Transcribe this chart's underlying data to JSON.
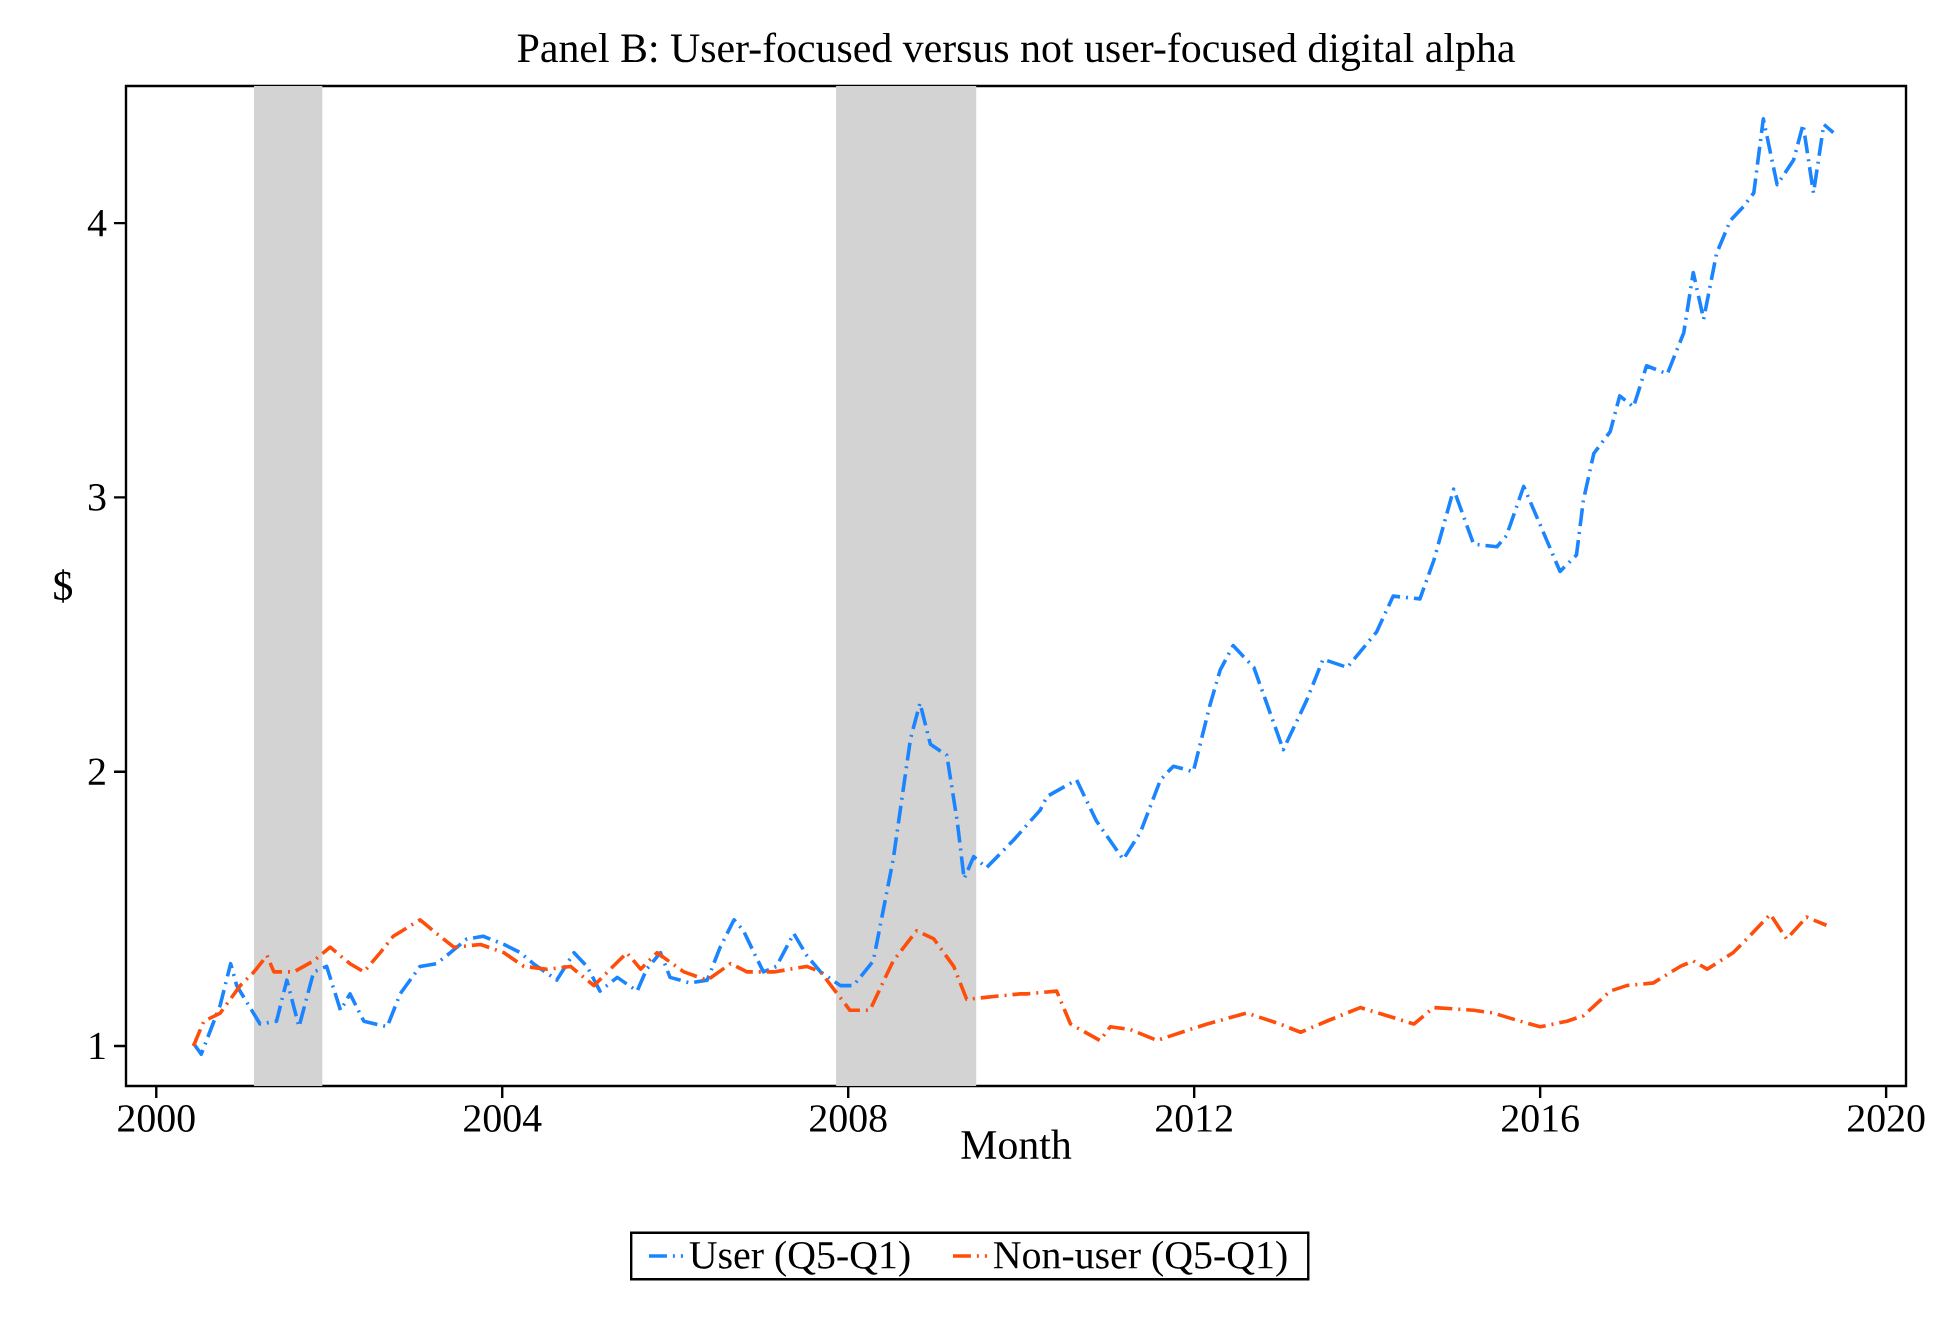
{
  "chart_data": {
    "type": "line",
    "title": "Panel B: User-focused versus not user-focused digital alpha",
    "xlabel": "Month",
    "ylabel": "$",
    "xlim": [
      1999.65,
      2020.23
    ],
    "xticks": [
      2000,
      2004,
      2008,
      2012,
      2016,
      2020
    ],
    "ylim": [
      0.854,
      4.5
    ],
    "yticks": [
      1,
      2,
      3,
      4
    ],
    "grid": false,
    "legend": "bottom",
    "line_style": "dashdot",
    "marker": "none",
    "bands": [
      {
        "axis": "x",
        "from": 2001.13,
        "to": 2001.92,
        "color": "#d3d3d3"
      },
      {
        "axis": "x",
        "from": 2007.86,
        "to": 2009.48,
        "color": "#d3d3d3"
      }
    ],
    "series": [
      {
        "name": "User (Q5-Q1)",
        "color": "#1a85ff",
        "x": [
          2000.43,
          2000.52,
          2000.74,
          2000.86,
          2000.93,
          2001.2,
          2001.39,
          2001.51,
          2001.65,
          2001.82,
          2001.97,
          2002.13,
          2002.24,
          2002.4,
          2002.67,
          2002.82,
          2003.05,
          2003.24,
          2003.4,
          2003.59,
          2003.78,
          2004.02,
          2004.21,
          2004.36,
          2004.63,
          2004.83,
          2004.98,
          2005.13,
          2005.33,
          2005.56,
          2005.67,
          2005.83,
          2005.94,
          2006.17,
          2006.37,
          2006.52,
          2006.68,
          2006.79,
          2006.91,
          2007.02,
          2007.17,
          2007.37,
          2007.52,
          2007.68,
          2007.91,
          2008.06,
          2008.29,
          2008.52,
          2008.72,
          2008.83,
          2008.95,
          2009.14,
          2009.26,
          2009.34,
          2009.45,
          2009.6,
          2009.91,
          2010.22,
          2010.3,
          2010.64,
          2010.87,
          2011.18,
          2011.38,
          2011.61,
          2011.76,
          2011.99,
          2012.18,
          2012.3,
          2012.45,
          2012.69,
          2013.03,
          2013.3,
          2013.49,
          2013.77,
          2014.11,
          2014.3,
          2014.61,
          2014.77,
          2015.0,
          2015.23,
          2015.5,
          2015.61,
          2015.81,
          2016.0,
          2016.23,
          2016.42,
          2016.5,
          2016.62,
          2016.81,
          2016.92,
          2017.08,
          2017.23,
          2017.47,
          2017.66,
          2017.77,
          2017.89,
          2018.04,
          2018.2,
          2018.35,
          2018.47,
          2018.58,
          2018.74,
          2018.93,
          2019.04,
          2019.16,
          2019.28,
          2019.39
        ],
        "values": [
          1.01,
          0.97,
          1.15,
          1.3,
          1.22,
          1.08,
          1.09,
          1.24,
          1.07,
          1.27,
          1.29,
          1.13,
          1.19,
          1.09,
          1.07,
          1.19,
          1.29,
          1.3,
          1.34,
          1.39,
          1.4,
          1.37,
          1.34,
          1.3,
          1.24,
          1.34,
          1.29,
          1.2,
          1.25,
          1.2,
          1.28,
          1.34,
          1.25,
          1.23,
          1.24,
          1.36,
          1.46,
          1.42,
          1.34,
          1.27,
          1.29,
          1.41,
          1.33,
          1.27,
          1.22,
          1.22,
          1.31,
          1.68,
          2.12,
          2.25,
          2.1,
          2.06,
          1.82,
          1.61,
          1.69,
          1.65,
          1.75,
          1.86,
          1.91,
          1.97,
          1.82,
          1.68,
          1.78,
          1.97,
          2.02,
          2.0,
          2.24,
          2.37,
          2.46,
          2.38,
          2.08,
          2.26,
          2.41,
          2.38,
          2.51,
          2.64,
          2.63,
          2.77,
          3.03,
          2.83,
          2.82,
          2.86,
          3.04,
          2.9,
          2.73,
          2.79,
          2.99,
          3.16,
          3.24,
          3.37,
          3.33,
          3.48,
          3.45,
          3.6,
          3.82,
          3.65,
          3.89,
          4.01,
          4.06,
          4.11,
          4.38,
          4.14,
          4.23,
          4.36,
          4.11,
          4.36,
          4.33
        ]
      },
      {
        "name": "Non-user (Q5-Q1)",
        "color": "#ff4d0a",
        "x": [
          2000.43,
          2000.55,
          2000.74,
          2000.97,
          2001.13,
          2001.28,
          2001.36,
          2001.59,
          2001.82,
          2002.01,
          2002.24,
          2002.4,
          2002.59,
          2002.74,
          2003.05,
          2003.24,
          2003.44,
          2003.75,
          2004.02,
          2004.25,
          2004.52,
          2004.79,
          2005.06,
          2005.44,
          2005.6,
          2005.79,
          2006.1,
          2006.37,
          2006.64,
          2006.83,
          2007.14,
          2007.52,
          2007.68,
          2008.02,
          2008.25,
          2008.52,
          2008.79,
          2008.99,
          2009.22,
          2009.37,
          2009.68,
          2009.99,
          2010.07,
          2010.41,
          2010.57,
          2010.91,
          2011.03,
          2011.26,
          2011.57,
          2011.95,
          2012.15,
          2012.61,
          2012.99,
          2013.23,
          2013.53,
          2013.92,
          2014.23,
          2014.54,
          2014.77,
          2015.23,
          2015.46,
          2015.77,
          2016.0,
          2016.31,
          2016.5,
          2016.81,
          2017.0,
          2017.31,
          2017.62,
          2017.77,
          2017.93,
          2018.23,
          2018.39,
          2018.66,
          2018.85,
          2019.08,
          2019.31
        ],
        "values": [
          1.0,
          1.09,
          1.12,
          1.22,
          1.27,
          1.33,
          1.27,
          1.27,
          1.31,
          1.36,
          1.3,
          1.27,
          1.34,
          1.4,
          1.46,
          1.41,
          1.36,
          1.37,
          1.34,
          1.29,
          1.28,
          1.29,
          1.22,
          1.34,
          1.28,
          1.34,
          1.27,
          1.24,
          1.3,
          1.27,
          1.27,
          1.29,
          1.27,
          1.13,
          1.13,
          1.31,
          1.42,
          1.39,
          1.29,
          1.17,
          1.18,
          1.19,
          1.19,
          1.2,
          1.08,
          1.02,
          1.07,
          1.06,
          1.02,
          1.06,
          1.08,
          1.12,
          1.08,
          1.05,
          1.09,
          1.14,
          1.11,
          1.08,
          1.14,
          1.13,
          1.12,
          1.09,
          1.07,
          1.09,
          1.11,
          1.2,
          1.22,
          1.23,
          1.29,
          1.31,
          1.28,
          1.34,
          1.39,
          1.48,
          1.39,
          1.47,
          1.44
        ]
      }
    ]
  }
}
